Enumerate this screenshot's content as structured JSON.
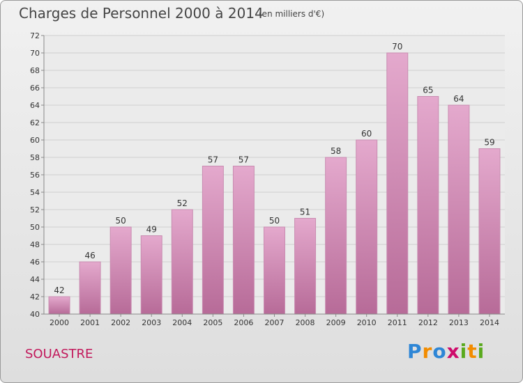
{
  "header": {
    "title": "Charges de Personnel 2000 à 2014",
    "subtitle": "(en milliers d'€)"
  },
  "footer": {
    "place": "SOUASTRE",
    "logo": "Proxiti"
  },
  "colors": {
    "bar_top": "#e4a9cd",
    "bar_bottom": "#b76b98",
    "place": "#c2185b"
  },
  "chart_data": {
    "type": "bar",
    "title": "Charges de Personnel 2000 à 2014",
    "subtitle": "(en milliers d'€)",
    "categories": [
      "2000",
      "2001",
      "2002",
      "2003",
      "2004",
      "2005",
      "2006",
      "2007",
      "2008",
      "2009",
      "2010",
      "2011",
      "2012",
      "2013",
      "2014"
    ],
    "values": [
      42,
      46,
      50,
      49,
      52,
      57,
      57,
      50,
      51,
      58,
      60,
      70,
      65,
      64,
      59
    ],
    "ylim": [
      40,
      72
    ],
    "yticks": [
      40,
      42,
      44,
      46,
      48,
      50,
      52,
      54,
      56,
      58,
      60,
      62,
      64,
      66,
      68,
      70,
      72
    ],
    "grid": true
  }
}
